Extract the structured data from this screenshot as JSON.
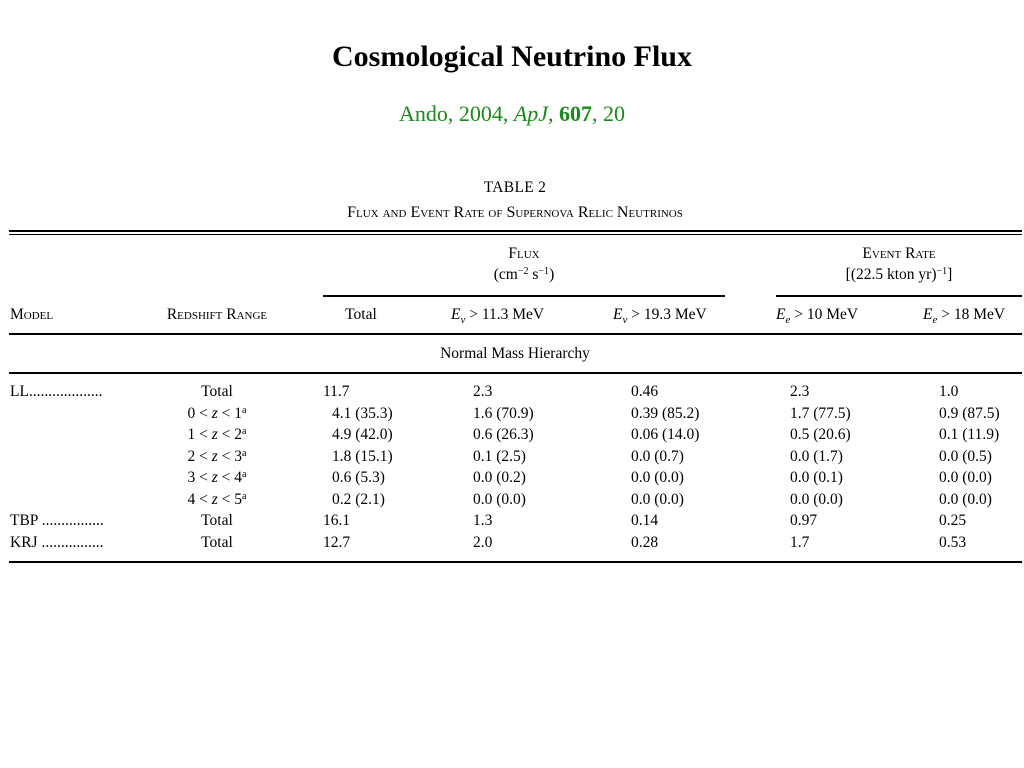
{
  "slide": {
    "title": "Cosmological Neutrino Flux",
    "citation": {
      "author_year": "Ando, 2004, ",
      "journal": "ApJ",
      "sep1": ", ",
      "volume": "607",
      "sep2": ", ",
      "page": "20"
    }
  },
  "table": {
    "label": "TABLE 2",
    "caption": "Flux and Event Rate of Supernova Relic Neutrinos",
    "group_flux": {
      "title": "Flux",
      "unit_pre": "(cm",
      "exp1": "−2",
      "unit_mid": " s",
      "exp2": "−1",
      "unit_post": ")"
    },
    "group_rate": {
      "title": "Event Rate",
      "unit_pre": "[(22.5 kton yr)",
      "exp": "−1",
      "unit_post": "]"
    },
    "col_model": "Model",
    "col_redshift": "Redshift Range",
    "col_total": "Total",
    "col_flux_e1": {
      "sym": "E",
      "sub": "ν",
      "cond": " > 11.3 MeV"
    },
    "col_flux_e2": {
      "sym": "E",
      "sub": "ν",
      "cond": " > 19.3 MeV"
    },
    "col_rate_e1": {
      "sym": "E",
      "sub": "e",
      "cond": " > 10 MeV"
    },
    "col_rate_e2": {
      "sym": "E",
      "sub": "e",
      "cond": " > 18 MeV"
    },
    "section": "Normal Mass Hierarchy",
    "rows": [
      {
        "model": "LL...................",
        "range": "Total",
        "total": "11.7",
        "f1": "2.3",
        "f2": "0.46",
        "r1": "2.3",
        "r2": "1.0"
      },
      {
        "model": "",
        "range": {
          "lo": "0",
          "hi": "1",
          "note": "a"
        },
        "total": "4.1 (35.3)",
        "f1": "1.6 (70.9)",
        "f2": "0.39 (85.2)",
        "r1": "1.7 (77.5)",
        "r2": "0.9 (87.5)"
      },
      {
        "model": "",
        "range": {
          "lo": "1",
          "hi": "2",
          "note": "a"
        },
        "total": "4.9 (42.0)",
        "f1": "0.6 (26.3)",
        "f2": "0.06 (14.0)",
        "r1": "0.5 (20.6)",
        "r2": "0.1 (11.9)"
      },
      {
        "model": "",
        "range": {
          "lo": "2",
          "hi": "3",
          "note": "a"
        },
        "total": "1.8 (15.1)",
        "f1": "0.1 (2.5)",
        "f2": "0.0 (0.7)",
        "r1": "0.0 (1.7)",
        "r2": "0.0 (0.5)"
      },
      {
        "model": "",
        "range": {
          "lo": "3",
          "hi": "4",
          "note": "a"
        },
        "total": "0.6 (5.3)",
        "f1": "0.0 (0.2)",
        "f2": "0.0 (0.0)",
        "r1": "0.0 (0.1)",
        "r2": "0.0 (0.0)"
      },
      {
        "model": "",
        "range": {
          "lo": "4",
          "hi": "5",
          "note": "a"
        },
        "total": "0.2 (2.1)",
        "f1": "0.0 (0.0)",
        "f2": "0.0 (0.0)",
        "r1": "0.0 (0.0)",
        "r2": "0.0 (0.0)"
      },
      {
        "model": "TBP ................",
        "range": "Total",
        "total": "16.1",
        "f1": "1.3",
        "f2": "0.14",
        "r1": "0.97",
        "r2": "0.25"
      },
      {
        "model": "KRJ ................",
        "range": "Total",
        "total": "12.7",
        "f1": "2.0",
        "f2": "0.28",
        "r1": "1.7",
        "r2": "0.53"
      }
    ]
  }
}
